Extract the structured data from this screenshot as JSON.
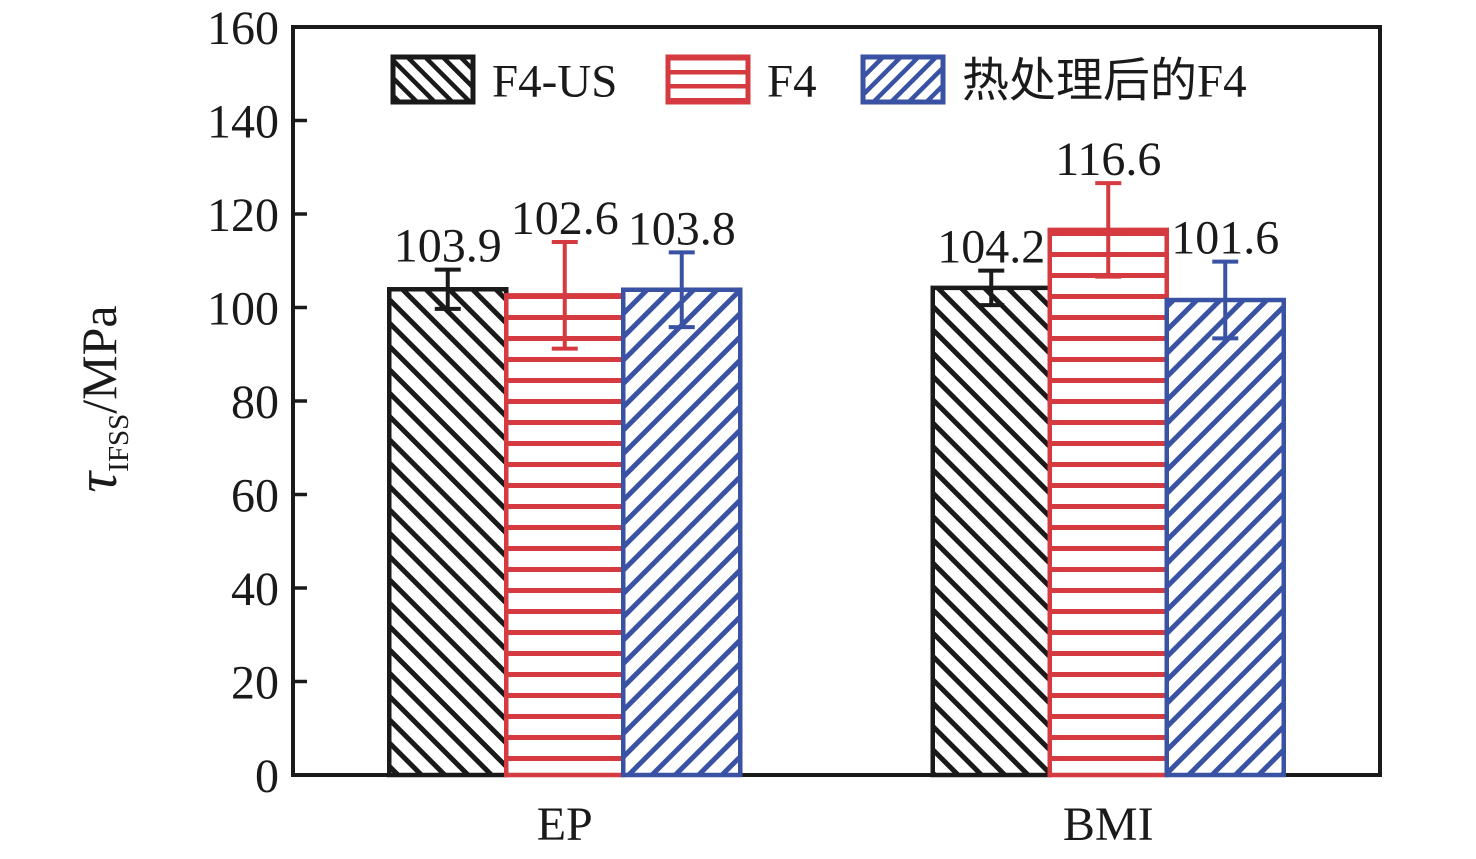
{
  "chart_data": {
    "type": "bar",
    "title": "",
    "categories": [
      "EP",
      "BMI"
    ],
    "series": [
      {
        "name": "F4-US",
        "color": "#1a1a1a",
        "hatch": "diagonal-forward",
        "values": [
          103.9,
          104.2
        ],
        "errors": [
          4.2,
          3.7
        ]
      },
      {
        "name": "F4",
        "color": "#d43a3f",
        "hatch": "horizontal",
        "values": [
          102.6,
          116.6
        ],
        "errors": [
          11.4,
          10.0
        ]
      },
      {
        "name": "热处理后的F4",
        "color": "#3a52a4",
        "hatch": "diagonal-backward",
        "values": [
          103.8,
          101.6
        ],
        "errors": [
          8.0,
          8.2
        ]
      }
    ],
    "ylabel": "τIFSS/MPa",
    "ylabel_parts": {
      "symbol": "τ",
      "subscript": "IFSS",
      "suffix": "/MPa"
    },
    "xlabel": "",
    "ylim": [
      0,
      160
    ],
    "ytick_step": 20,
    "yticks": [
      0,
      20,
      40,
      60,
      80,
      100,
      120,
      140,
      160
    ],
    "grid": false,
    "legend_position": "top-inside",
    "bar_value_labels": [
      "103.9",
      "102.6",
      "103.8",
      "104.2",
      "116.6",
      "101.6"
    ],
    "background_color": "#ffffff",
    "axis_color": "#1a1a1a"
  }
}
